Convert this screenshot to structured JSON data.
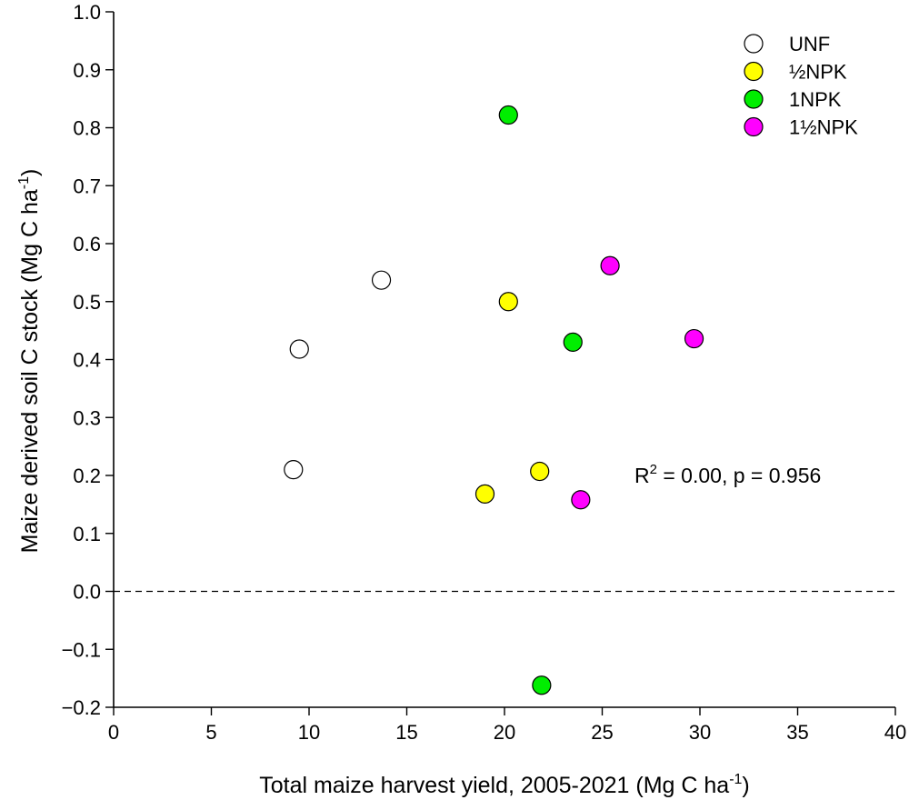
{
  "chart_data": {
    "type": "scatter",
    "xlabel": "Total maize harvest yield, 2005-2021 (Mg C ha",
    "xlabel_sup": "-1",
    "xlabel_end": ")",
    "ylabel": "Maize derived soil C stock (Mg C ha",
    "ylabel_sup": "-1",
    "ylabel_end": ")",
    "xlim": [
      0,
      40
    ],
    "ylim": [
      -0.2,
      1.0
    ],
    "x_ticks": [
      0,
      5,
      10,
      15,
      20,
      25,
      30,
      35,
      40
    ],
    "x_tick_labels": [
      "0",
      "5",
      "10",
      "15",
      "20",
      "25",
      "30",
      "35",
      "40"
    ],
    "y_ticks": [
      -0.2,
      -0.1,
      0.0,
      0.1,
      0.2,
      0.3,
      0.4,
      0.5,
      0.6,
      0.7,
      0.8,
      0.9,
      1.0
    ],
    "y_tick_labels": [
      "−0.2",
      "−0.1",
      "0.0",
      "0.1",
      "0.2",
      "0.3",
      "0.4",
      "0.5",
      "0.6",
      "0.7",
      "0.8",
      "0.9",
      "1.0"
    ],
    "reference_line": {
      "y": 0.0,
      "style": "dashed"
    },
    "grid": false,
    "legend_position": "top-right",
    "annotation": {
      "prefix": "R",
      "sup": "2",
      "suffix": " = 0.00, p = 0.956"
    },
    "series": [
      {
        "name": "UNF",
        "color": "#ffffff",
        "points": [
          {
            "x": 9.2,
            "y": 0.21
          },
          {
            "x": 9.5,
            "y": 0.418
          },
          {
            "x": 13.7,
            "y": 0.537
          }
        ]
      },
      {
        "name": "½NPK",
        "color": "#ffff00",
        "points": [
          {
            "x": 19.0,
            "y": 0.168
          },
          {
            "x": 20.2,
            "y": 0.5
          },
          {
            "x": 21.8,
            "y": 0.207
          }
        ]
      },
      {
        "name": "1NPK",
        "color": "#00ee00",
        "points": [
          {
            "x": 20.2,
            "y": 0.822
          },
          {
            "x": 21.9,
            "y": -0.162
          },
          {
            "x": 23.5,
            "y": 0.43
          }
        ]
      },
      {
        "name": "1½NPK",
        "color": "#ff00ff",
        "points": [
          {
            "x": 23.9,
            "y": 0.158
          },
          {
            "x": 25.4,
            "y": 0.562
          },
          {
            "x": 29.7,
            "y": 0.436
          }
        ]
      }
    ]
  }
}
